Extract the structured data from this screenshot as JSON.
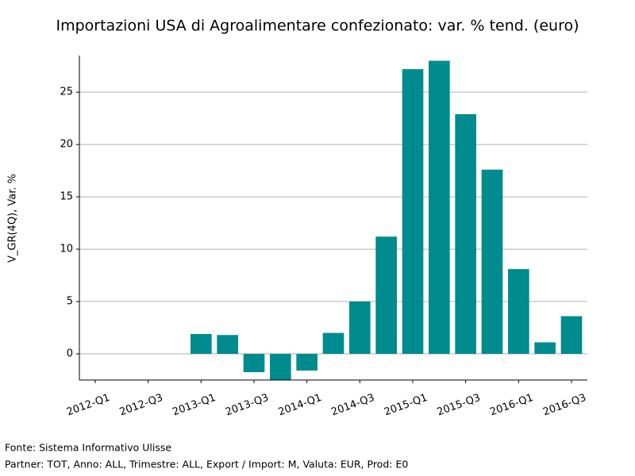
{
  "chart_data": {
    "type": "bar",
    "title": "Importazioni USA di Agroalimentare confezionato: var. % tend. (euro)",
    "y_label": "V_GR(4Q), Var. %",
    "categories": [
      "2012-Q1",
      null,
      "2012-Q3",
      null,
      "2013-Q1",
      null,
      "2013-Q3",
      null,
      "2014-Q1",
      null,
      "2014-Q3",
      null,
      "2015-Q1",
      null,
      "2015-Q3",
      null,
      "2016-Q1",
      null,
      "2016-Q3"
    ],
    "values": [
      null,
      null,
      null,
      null,
      1.9,
      1.8,
      -1.75,
      -2.6,
      -1.6,
      2.0,
      5.0,
      11.2,
      27.2,
      28.0,
      22.9,
      17.6,
      8.1,
      1.1,
      3.6
    ],
    "color": "#008b8f",
    "ylim": [
      -2.5,
      28.5
    ],
    "yticks": [
      0,
      5,
      10,
      15,
      20,
      25
    ],
    "grid": true,
    "footnotes": [
      "Fonte: Sistema Informativo Ulisse",
      "Partner: TOT, Anno: ALL, Trimestre: ALL, Export / Import: M, Valuta: EUR, Prod: E0"
    ]
  }
}
